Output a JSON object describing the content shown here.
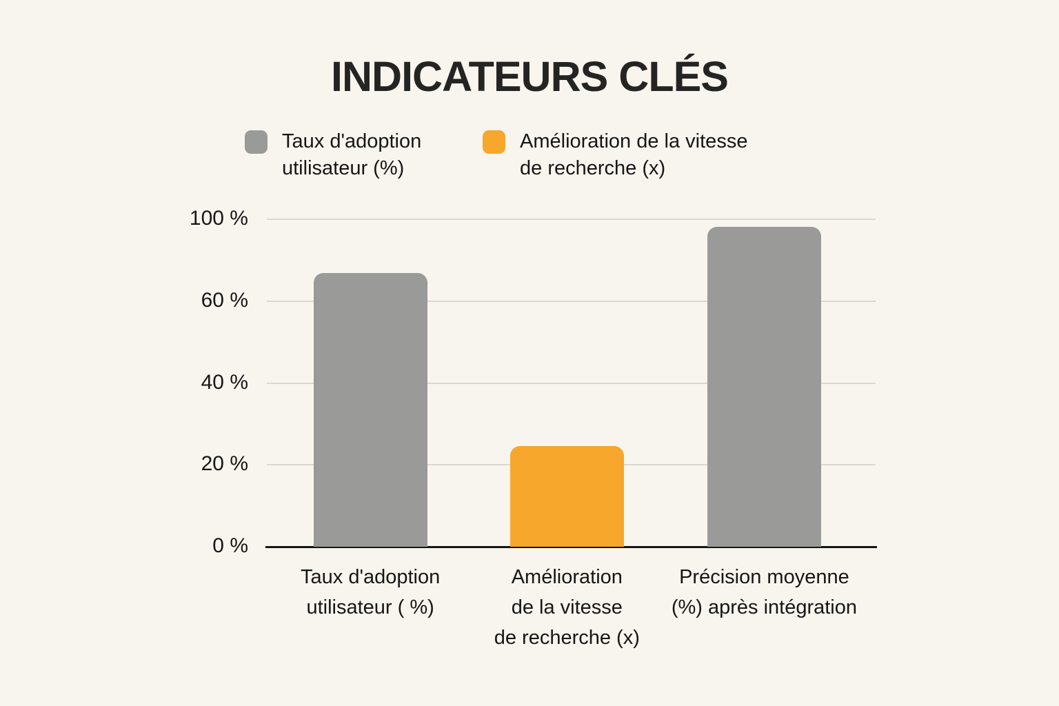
{
  "page": {
    "background_color": "#f8f5ee",
    "title": "INDICATEURS CLÉS"
  },
  "chart_data": {
    "type": "bar",
    "title": "INDICATEURS CLÉS",
    "categories": [
      "Taux d'adoption utilisateur ( %)",
      "Amélioration de la vitesse de recherche (x)",
      "Précision moyenne (%) après intégration"
    ],
    "category_lines": [
      [
        "Taux d'adoption",
        "utilisateur ( %)"
      ],
      [
        "Amélioration",
        "de la vitesse",
        "de recherche (x)"
      ],
      [
        "Précision moyenne",
        "(%) après intégration"
      ]
    ],
    "values": [
      68,
      25,
      98
    ],
    "bar_colors": [
      "#9a9a98",
      "#f7a72b",
      "#9a9a98"
    ],
    "xlabel": "",
    "ylabel": "",
    "ylim": [
      0,
      100
    ],
    "y_ticks": [
      "100 %",
      "60 %",
      "40 %",
      "20 %",
      "0 %"
    ],
    "legend": [
      {
        "label": "Taux d'adoption utilisateur (%)",
        "label_lines": [
          "Taux d'adoption",
          "utilisateur (%)"
        ],
        "color": "#9a9a98"
      },
      {
        "label": "Amélioration de la vitesse de recherche (x)",
        "label_lines": [
          "Amélioration de la vitesse",
          "de recherche (x)"
        ],
        "color": "#f7a72b"
      }
    ],
    "layout": {
      "grid": true,
      "legend_position": "top",
      "axis_note": "y ticks are evenly spaced even though 80 % is skipped (non-linear axis as drawn)",
      "grid_color": "#dcd8d0",
      "axis_color": "#151515",
      "bar_height_frac": [
        0.836,
        0.307,
        0.977
      ],
      "bar_center_frac": [
        0.17,
        0.493,
        0.817
      ],
      "legend_item_x": [
        355,
        700
      ]
    }
  }
}
